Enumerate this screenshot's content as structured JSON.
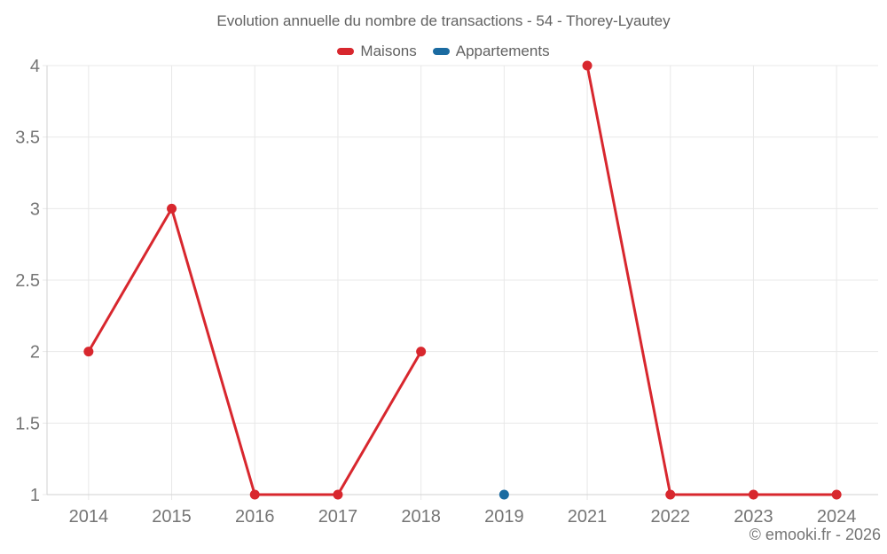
{
  "footer": {
    "copyright": "© emooki.fr - 2026"
  },
  "chart_data": {
    "type": "line",
    "title": "Evolution annuelle du nombre de transactions - 54 - Thorey-Lyautey",
    "categories": [
      "2014",
      "2015",
      "2016",
      "2017",
      "2018",
      "2019",
      "2021",
      "2022",
      "2023",
      "2024"
    ],
    "series": [
      {
        "name": "Maisons",
        "color": "#d8272e",
        "values": [
          2,
          3,
          1,
          1,
          2,
          null,
          4,
          1,
          1,
          1
        ]
      },
      {
        "name": "Appartements",
        "color": "#1b6ba1",
        "values": [
          null,
          null,
          null,
          null,
          null,
          1,
          null,
          null,
          null,
          null
        ]
      }
    ],
    "ylim": [
      1,
      4
    ],
    "y_ticks": [
      1,
      1.5,
      2,
      2.5,
      3,
      3.5,
      4
    ],
    "grid": true,
    "legend_position": "top",
    "marker_radius": 5.5,
    "line_width": 3
  }
}
